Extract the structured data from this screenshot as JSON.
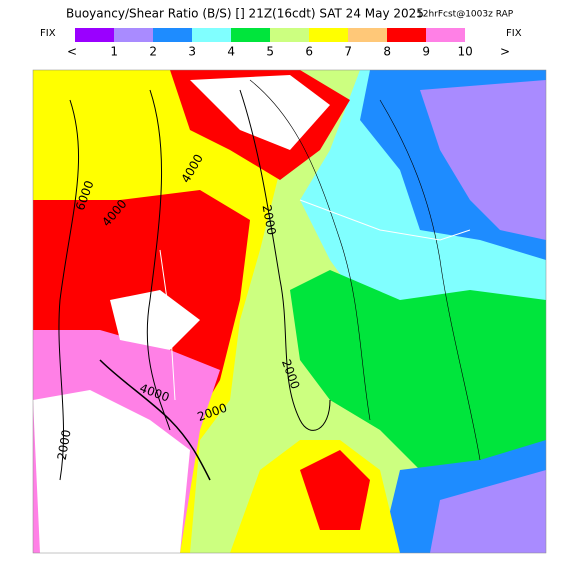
{
  "header": {
    "title": "Buoyancy/Shear Ratio (B/S) [] 21Z(16cdt) SAT 24 May 2025",
    "forecast": "12hrFcst@1003z RAP",
    "fix_left": "FIX",
    "fix_right": "FIX"
  },
  "legend": {
    "labels": [
      "<",
      "1",
      "2",
      "3",
      "4",
      "5",
      "6",
      "7",
      "8",
      "9",
      "10",
      ">"
    ],
    "colors": [
      "#9a00ff",
      "#a98bff",
      "#1e8cff",
      "#80ffff",
      "#00e53c",
      "#ccff80",
      "#ffff00",
      "#ffc878",
      "#ff0000",
      "#ff80e6"
    ]
  },
  "map": {
    "contour_labels": [
      "6000",
      "4000",
      "4000",
      "2000",
      "2000",
      "4000",
      "2000",
      "2000"
    ]
  }
}
